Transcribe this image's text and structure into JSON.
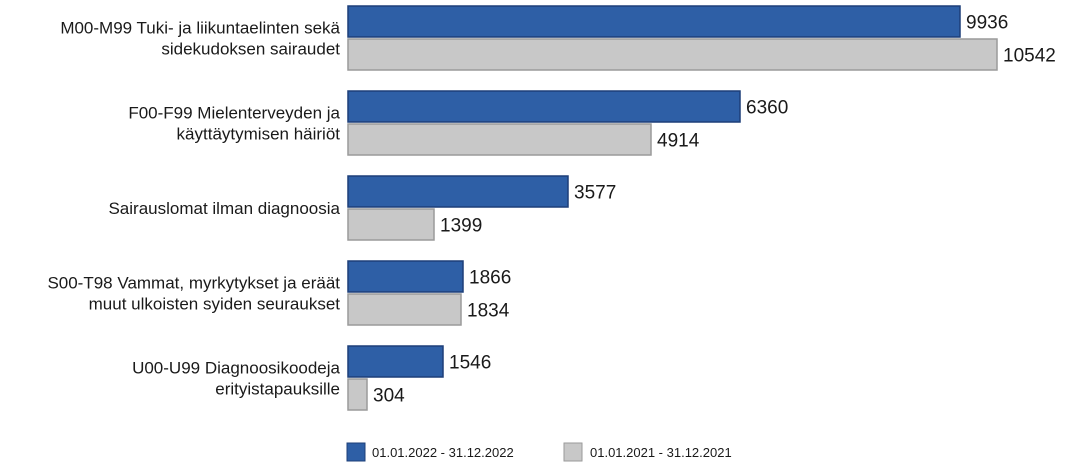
{
  "chart_data": {
    "type": "bar",
    "orientation": "horizontal",
    "categories": [
      [
        "M00-M99 Tuki- ja liikuntaelinten sekä",
        "sidekudoksen sairaudet"
      ],
      [
        "F00-F99 Mielenterveyden ja",
        "käyttäytymisen häiriöt"
      ],
      [
        "Sairauslomat ilman diagnoosia"
      ],
      [
        "S00-T98 Vammat, myrkytykset ja eräät",
        "muut ulkoisten syiden seuraukset"
      ],
      [
        "U00-U99 Diagnoosikoodeja",
        "erityistapauksille"
      ]
    ],
    "series": [
      {
        "name": "01.01.2022 - 31.12.2022",
        "color": "#2e5fa6",
        "values": [
          9936,
          6360,
          3577,
          1866,
          1546
        ]
      },
      {
        "name": "01.01.2021 - 31.12.2021",
        "color": "#c8c8c8",
        "values": [
          10542,
          4914,
          1399,
          1834,
          304
        ]
      }
    ],
    "legend_position": "bottom",
    "grid": false,
    "xlim": [
      0,
      10542
    ]
  }
}
